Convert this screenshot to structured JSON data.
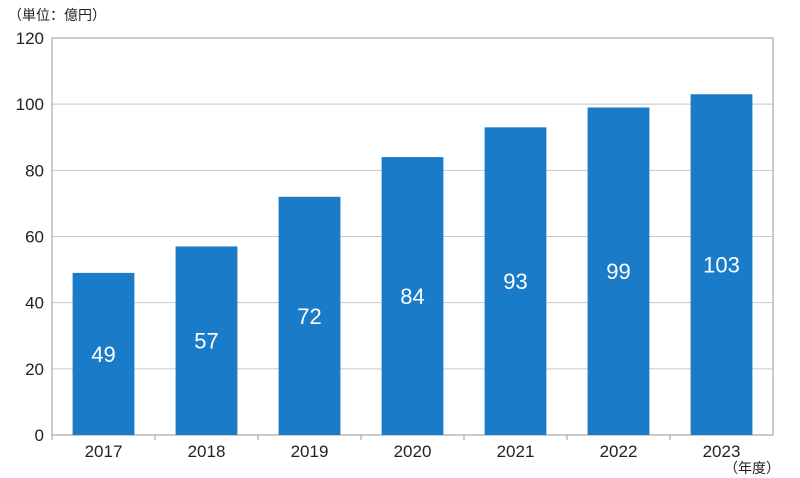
{
  "chart_data": {
    "type": "bar",
    "categories": [
      "2017",
      "2018",
      "2019",
      "2020",
      "2021",
      "2022",
      "2023"
    ],
    "values": [
      49,
      57,
      72,
      84,
      93,
      99,
      103
    ],
    "title": "",
    "xlabel": "（年度）",
    "ylabel": "（単位：億円）",
    "ylim": [
      0,
      120
    ],
    "yticks": [
      0,
      20,
      40,
      60,
      80,
      100,
      120
    ],
    "grid": true,
    "legend": "none",
    "bar_color": "#1a7bc9",
    "grid_color": "#c8c8c8"
  }
}
